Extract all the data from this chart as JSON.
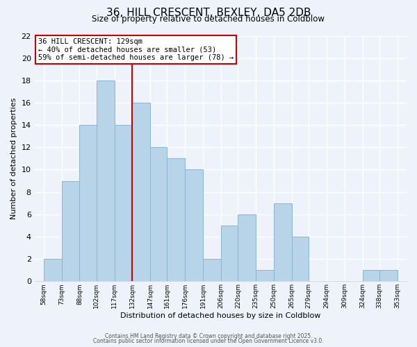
{
  "title": "36, HILL CRESCENT, BEXLEY, DA5 2DB",
  "subtitle": "Size of property relative to detached houses in Coldblow",
  "xlabel": "Distribution of detached houses by size in Coldblow",
  "ylabel": "Number of detached properties",
  "bin_edges": [
    58,
    73,
    88,
    102,
    117,
    132,
    147,
    161,
    176,
    191,
    206,
    220,
    235,
    250,
    265,
    279,
    294,
    309,
    324,
    338,
    353
  ],
  "counts": [
    2,
    9,
    14,
    18,
    14,
    16,
    12,
    11,
    10,
    2,
    5,
    6,
    1,
    7,
    4,
    0,
    0,
    0,
    1,
    1
  ],
  "bar_color": "#b8d4e8",
  "bar_edge_color": "#8ab4d0",
  "ref_line_x": 132,
  "ref_line_color": "#cc0000",
  "annotation_title": "36 HILL CRESCENT: 129sqm",
  "annotation_line1": "← 40% of detached houses are smaller (53)",
  "annotation_line2": "59% of semi-detached houses are larger (78) →",
  "annotation_box_color": "#ffffff",
  "annotation_box_edge": "#cc0000",
  "background_color": "#eef2fb",
  "grid_color": "#ffffff",
  "ylim": [
    0,
    22
  ],
  "yticks": [
    0,
    2,
    4,
    6,
    8,
    10,
    12,
    14,
    16,
    18,
    20,
    22
  ],
  "footer1": "Contains HM Land Registry data © Crown copyright and database right 2025.",
  "footer2": "Contains public sector information licensed under the Open Government Licence v3.0."
}
